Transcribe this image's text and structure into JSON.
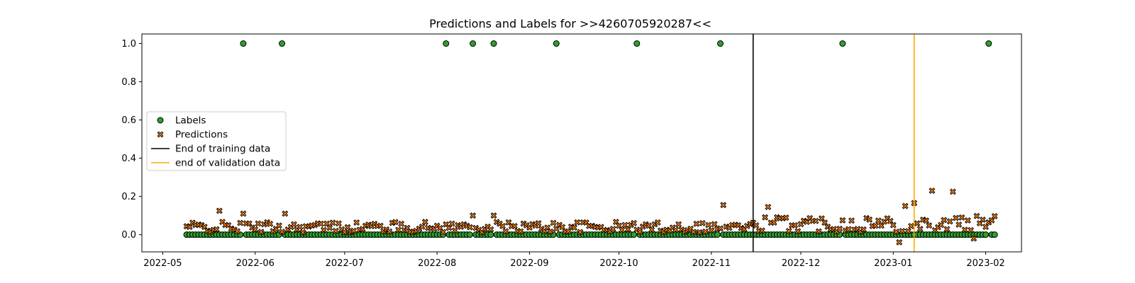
{
  "chart_data": {
    "type": "scatter",
    "title": "Predictions and Labels for >>4260705920287<<",
    "xlabel": "",
    "ylabel": "",
    "x_axis": "date",
    "xlim": [
      "2022-04-24",
      "2023-02-13"
    ],
    "ylim": [
      -0.09,
      1.05
    ],
    "x_ticks": [
      "2022-05-01",
      "2022-06-01",
      "2022-07-01",
      "2022-08-01",
      "2022-09-01",
      "2022-10-01",
      "2022-11-01",
      "2022-12-01",
      "2023-01-01",
      "2023-02-01"
    ],
    "x_tick_labels": [
      "2022-05",
      "2022-06",
      "2022-07",
      "2022-08",
      "2022-09",
      "2022-10",
      "2022-11",
      "2022-12",
      "2023-01",
      "2023-02"
    ],
    "y_ticks": [
      0.0,
      0.2,
      0.4,
      0.6,
      0.8,
      1.0
    ],
    "y_tick_labels": [
      "0.0",
      "0.2",
      "0.4",
      "0.6",
      "0.8",
      "1.0"
    ],
    "grid": false,
    "legend_position": "center-left",
    "date_range": {
      "start": "2022-05-09",
      "end": "2023-02-04"
    },
    "positive_label_dates": [
      "2022-05-28",
      "2022-06-10",
      "2022-08-04",
      "2022-08-13",
      "2022-08-20",
      "2022-09-10",
      "2022-10-07",
      "2022-11-04",
      "2022-12-15",
      "2023-02-02"
    ],
    "prediction_spikes": [
      {
        "date": "2022-05-20",
        "value": 0.125
      },
      {
        "date": "2022-05-28",
        "value": 0.11
      },
      {
        "date": "2022-06-11",
        "value": 0.11
      },
      {
        "date": "2022-08-13",
        "value": 0.1
      },
      {
        "date": "2022-08-20",
        "value": 0.1
      },
      {
        "date": "2022-11-05",
        "value": 0.155
      },
      {
        "date": "2022-11-20",
        "value": 0.145
      },
      {
        "date": "2023-01-05",
        "value": 0.15
      },
      {
        "date": "2023-01-08",
        "value": 0.165
      },
      {
        "date": "2023-01-14",
        "value": 0.23
      },
      {
        "date": "2023-01-21",
        "value": 0.225
      },
      {
        "date": "2023-01-03",
        "value": -0.04
      },
      {
        "date": "2023-01-28",
        "value": -0.02
      }
    ],
    "vlines": [
      {
        "name": "End of training data",
        "date": "2022-11-15",
        "color": "#000000"
      },
      {
        "name": "end of validation data",
        "date": "2023-01-08",
        "color": "#ffa500"
      }
    ],
    "series": [
      {
        "name": "Labels",
        "marker": "circle",
        "color": "#2ca02c"
      },
      {
        "name": "Predictions",
        "marker": "x",
        "color": "#ff7f0e"
      }
    ],
    "legend": [
      "Labels",
      "Predictions",
      "End of training data",
      "end of validation data"
    ]
  }
}
